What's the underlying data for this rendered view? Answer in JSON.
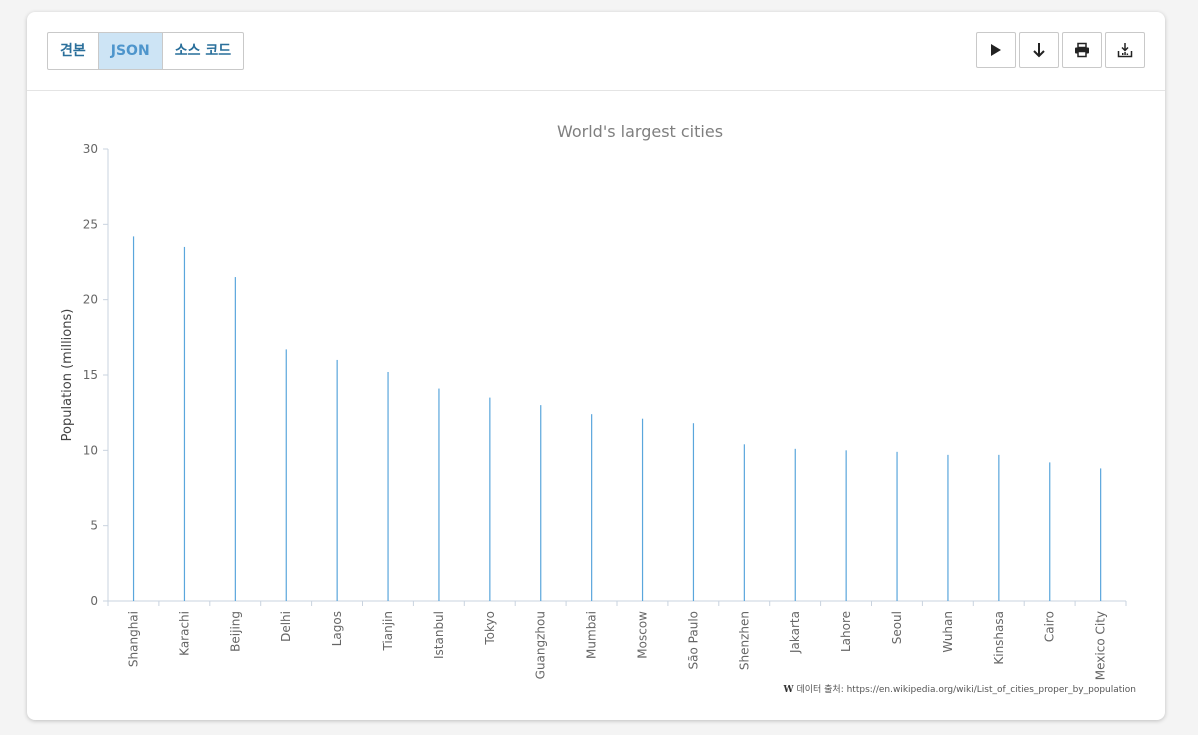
{
  "tabs": [
    {
      "label": "견본",
      "active": false
    },
    {
      "label": "JSON",
      "active": true
    },
    {
      "label": "소스 코드",
      "active": false
    }
  ],
  "tools": [
    "play-icon",
    "arrow-down-icon",
    "printer-icon",
    "export-icon"
  ],
  "colors": {
    "bar": "#5aa6dc",
    "axis": "#c9d3df",
    "text": "#666666",
    "title": "#7f7f7f"
  },
  "chart_data": {
    "type": "bar",
    "title": "World's largest cities",
    "ylabel": "Population (millions)",
    "xlabel": "",
    "ylim": [
      0,
      30
    ],
    "yticks": [
      0,
      5,
      10,
      15,
      20,
      25,
      30
    ],
    "grid": false,
    "categories": [
      "Shanghai",
      "Karachi",
      "Beijing",
      "Delhi",
      "Lagos",
      "Tianjin",
      "Istanbul",
      "Tokyo",
      "Guangzhou",
      "Mumbai",
      "Moscow",
      "São Paulo",
      "Shenzhen",
      "Jakarta",
      "Lahore",
      "Seoul",
      "Wuhan",
      "Kinshasa",
      "Cairo",
      "Mexico City"
    ],
    "values": [
      24.2,
      23.5,
      21.5,
      16.7,
      16.0,
      15.2,
      14.1,
      13.5,
      13.0,
      12.4,
      12.1,
      11.8,
      10.4,
      10.1,
      10.0,
      9.9,
      9.7,
      9.7,
      9.2,
      8.8
    ]
  },
  "credit": {
    "logo": "W",
    "text": "데이터 출처: https://en.wikipedia.org/wiki/List_of_cities_proper_by_population"
  }
}
